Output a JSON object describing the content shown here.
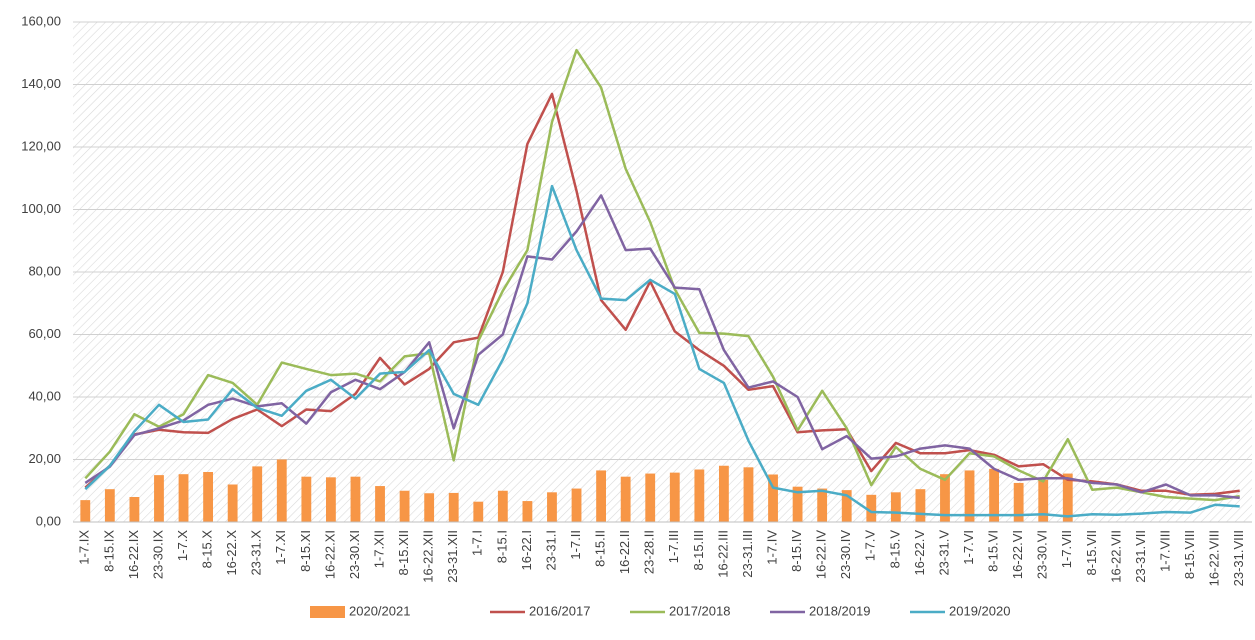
{
  "chart_data": {
    "type": "combo",
    "categories": [
      "1-7.IX",
      "8-15.IX",
      "16-22.IX",
      "23-30.IX",
      "1-7.X",
      "8-15.X",
      "16-22.X",
      "23-31.X",
      "1-7.XI",
      "8-15.XI",
      "16-22.XI",
      "23-30.XI",
      "1-7.XII",
      "8-15.XII",
      "16-22.XII",
      "23-31.XII",
      "1-7.I",
      "8-15.I",
      "16-22.I",
      "23-31.I",
      "1-7.II",
      "8-15.II",
      "16-22.II",
      "23-28.II",
      "1-7.III",
      "8-15.III",
      "16-22.III",
      "23-31.III",
      "1-7.IV",
      "8-15.IV",
      "16-22.IV",
      "23-30.IV",
      "1-7.V",
      "8-15.V",
      "16-22.V",
      "23-31.V",
      "1-7.VI",
      "8-15.VI",
      "16-22.VI",
      "23-30.VI",
      "1-7.VII",
      "8-15.VII",
      "16-22.VII",
      "23-31.VII",
      "1-7.VIII",
      "8-15.VIII",
      "16-22.VIII",
      "23-31.VIII"
    ],
    "series": [
      {
        "name": "2020/2021",
        "type": "bar",
        "color": "#f79646",
        "values": [
          7,
          10.5,
          8,
          15,
          15.3,
          16,
          12,
          17.8,
          20,
          14.5,
          14.3,
          14.5,
          11.5,
          10,
          9.2,
          9.3,
          6.5,
          10,
          6.7,
          9.5,
          10.7,
          16.5,
          14.5,
          15.5,
          15.8,
          16.8,
          18,
          17.5,
          15.2,
          11.3,
          10.7,
          10.2,
          8.7,
          9.5,
          10.5,
          15.3,
          16.5,
          17,
          12.5,
          13.5,
          15.5,
          null,
          null,
          null,
          null,
          null,
          null,
          null
        ]
      },
      {
        "name": "2016/2017",
        "type": "line",
        "color": "#c0504d",
        "values": [
          11,
          18,
          28,
          29.5,
          28.7,
          28.5,
          33,
          36,
          30.7,
          36,
          35.5,
          41,
          52.5,
          44,
          49,
          57.5,
          59,
          80,
          121,
          137,
          106,
          71,
          61.5,
          77,
          61,
          55,
          50,
          42.3,
          43.5,
          28.7,
          29.3,
          29.7,
          16.3,
          25.3,
          22,
          22,
          23,
          21.5,
          17.8,
          18.5,
          13.5,
          13,
          12,
          10,
          10,
          8.7,
          9,
          10
        ]
      },
      {
        "name": "2017/2018",
        "type": "line",
        "color": "#9bbb59",
        "values": [
          14,
          22.5,
          34.5,
          30.5,
          34.5,
          47,
          44.5,
          37.5,
          51,
          49,
          47,
          47.5,
          45,
          53,
          54,
          19.7,
          58,
          74,
          87,
          128,
          151,
          139,
          113,
          96,
          74.5,
          60.5,
          60.3,
          59.5,
          46.5,
          29.3,
          42,
          30,
          11.8,
          24,
          17,
          13.5,
          22,
          21,
          16.5,
          13,
          26.5,
          10.3,
          11,
          9.5,
          8,
          7.5,
          7,
          8.3
        ]
      },
      {
        "name": "2018/2019",
        "type": "line",
        "color": "#8064a2",
        "values": [
          12.5,
          17.7,
          27.8,
          30,
          32.5,
          37.5,
          39.5,
          37,
          38,
          31.5,
          41.5,
          45.5,
          42.5,
          48,
          57.5,
          30,
          53.5,
          60,
          85,
          84,
          93,
          104.5,
          87,
          87.5,
          75,
          74.5,
          55,
          43,
          45,
          40,
          23.3,
          27.5,
          20.3,
          21,
          23.5,
          24.5,
          23.5,
          17,
          13.5,
          14,
          14,
          12.5,
          12,
          9.5,
          12,
          8.5,
          8.5,
          7.7
        ]
      },
      {
        "name": "2019/2020",
        "type": "line",
        "color": "#4bacc6",
        "values": [
          10.5,
          18,
          29,
          37.5,
          32,
          32.8,
          42.5,
          36.5,
          34,
          42,
          45.5,
          39.5,
          47.5,
          48,
          55,
          41,
          37.5,
          52,
          70,
          107.5,
          87,
          71.5,
          71,
          77.5,
          73,
          49,
          44.5,
          26,
          11,
          9.5,
          10,
          8.5,
          3.2,
          3,
          2.6,
          2.2,
          2.2,
          2.2,
          2.2,
          2.5,
          1.8,
          2.5,
          2.3,
          2.7,
          3.2,
          3,
          5.5,
          5
        ]
      }
    ],
    "ylim": [
      0,
      160
    ],
    "yticks": [
      {
        "value": 0,
        "label": "0,00"
      },
      {
        "value": 20,
        "label": "20,00"
      },
      {
        "value": 40,
        "label": "40,00"
      },
      {
        "value": 60,
        "label": "60,00"
      },
      {
        "value": 80,
        "label": "80,00"
      },
      {
        "value": 100,
        "label": "100,00"
      },
      {
        "value": 120,
        "label": "120,00"
      },
      {
        "value": 140,
        "label": "140,00"
      },
      {
        "value": 160,
        "label": "160,00"
      }
    ],
    "grid": true,
    "legend": "bottom"
  }
}
